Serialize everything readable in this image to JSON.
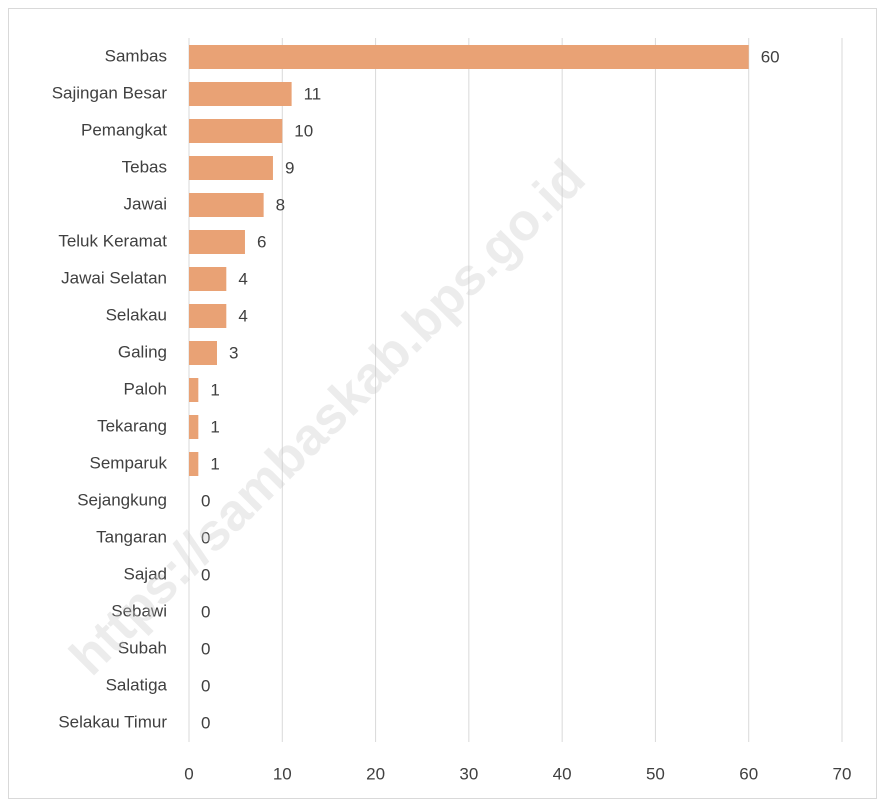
{
  "chart_data": {
    "type": "bar",
    "orientation": "horizontal",
    "categories": [
      "Sambas",
      "Sajingan Besar",
      "Pemangkat",
      "Tebas",
      "Jawai",
      "Teluk Keramat",
      "Jawai Selatan",
      "Selakau",
      "Galing",
      "Paloh",
      "Tekarang",
      "Semparuk",
      "Sejangkung",
      "Tangaran",
      "Sajad",
      "Sebawi",
      "Subah",
      "Salatiga",
      "Selakau Timur"
    ],
    "values": [
      60,
      11,
      10,
      9,
      8,
      6,
      4,
      4,
      3,
      1,
      1,
      1,
      0,
      0,
      0,
      0,
      0,
      0,
      0
    ],
    "color": "#e9a275",
    "xlim": [
      0,
      70
    ],
    "xticks": [
      0,
      10,
      20,
      30,
      40,
      50,
      60,
      70
    ],
    "grid": true,
    "watermark": "https://sambaskab.bps.go.id"
  }
}
